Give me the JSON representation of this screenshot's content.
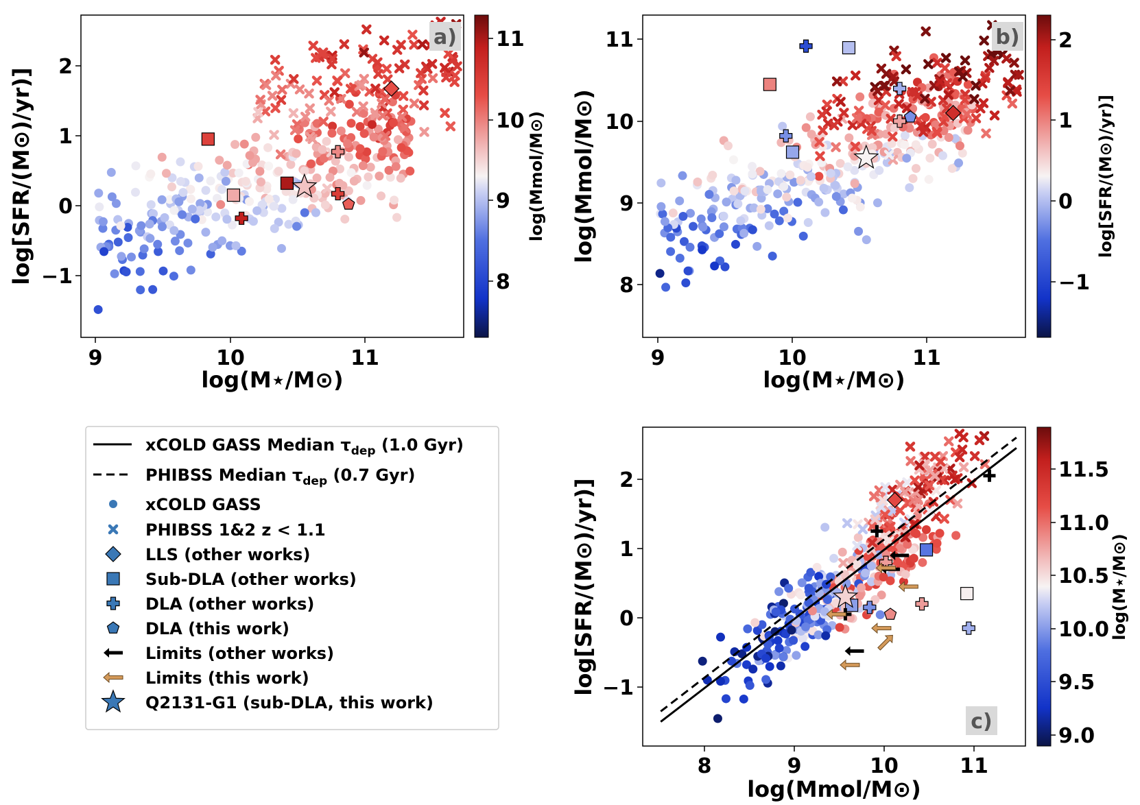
{
  "chart_data": [
    {
      "panel": "a)",
      "type": "scatter",
      "xlabel": "log(M⋆/M⊙)",
      "ylabel": "log[SFR/(M⊙)/yr)]",
      "x_ticks": [
        "9",
        "10",
        "11"
      ],
      "y_ticks": [
        "2",
        "1",
        "0",
        "−1"
      ],
      "xlim": [
        8.88,
        11.74
      ],
      "ylim": [
        -1.85,
        2.75
      ],
      "colorbar": {
        "label": "log(Mmol/M⊙)",
        "range": [
          7.3,
          11.3
        ],
        "ticks": [
          "11",
          "10",
          "9",
          "8"
        ]
      },
      "highlighted": [
        {
          "series": "LLS",
          "x": 11.2,
          "y": 1.7,
          "c": 10.3
        },
        {
          "series": "Sub-DLA",
          "x": 9.83,
          "y": 0.98,
          "c": 10.45
        },
        {
          "series": "Sub-DLA",
          "x": 10.42,
          "y": 0.35,
          "c": 11.0
        },
        {
          "series": "Sub-DLA",
          "x": 10.02,
          "y": 0.18,
          "c": 9.75
        },
        {
          "series": "DLA",
          "x": 10.8,
          "y": 0.8,
          "c": 9.95
        },
        {
          "series": "DLA",
          "x": 10.8,
          "y": 0.2,
          "c": 10.5
        },
        {
          "series": "DLA",
          "x": 10.08,
          "y": -0.15,
          "c": 10.9
        },
        {
          "series": "DLA (this work)",
          "x": 10.88,
          "y": 0.05,
          "c": 10.2
        },
        {
          "series": "Q2131-G1",
          "x": 10.55,
          "y": 0.3,
          "c": 9.6
        }
      ]
    },
    {
      "panel": "b)",
      "type": "scatter",
      "xlabel": "log(M⋆/M⊙)",
      "ylabel": "log(Mmol/M⊙)",
      "x_ticks": [
        "9",
        "10",
        "11"
      ],
      "y_ticks": [
        "11",
        "10",
        "9",
        "8"
      ],
      "xlim": [
        8.88,
        11.74
      ],
      "ylim": [
        7.35,
        11.3
      ],
      "colorbar": {
        "label": "log[SFR/(M⊙)/yr)]",
        "range": [
          -1.7,
          2.3
        ],
        "ticks": [
          "2",
          "1",
          "0",
          "−1"
        ]
      },
      "highlighted": [
        {
          "series": "LLS",
          "x": 11.2,
          "y": 10.1,
          "c": 1.7
        },
        {
          "series": "Sub-DLA",
          "x": 9.83,
          "y": 10.45,
          "c": 0.98
        },
        {
          "series": "Sub-DLA",
          "x": 10.42,
          "y": 10.9,
          "c": 0.0
        },
        {
          "series": "Sub-DLA",
          "x": 10.0,
          "y": 9.62,
          "c": -0.15
        },
        {
          "series": "DLA",
          "x": 10.1,
          "y": 10.92,
          "c": -0.9
        },
        {
          "series": "DLA",
          "x": 10.8,
          "y": 10.4,
          "c": -0.1
        },
        {
          "series": "DLA",
          "x": 9.95,
          "y": 9.82,
          "c": -0.3
        },
        {
          "series": "DLA",
          "x": 10.8,
          "y": 10.0,
          "c": 0.8
        },
        {
          "series": "DLA (this work)",
          "x": 10.88,
          "y": 10.05,
          "c": -0.3
        },
        {
          "series": "Q2131-G1",
          "x": 10.55,
          "y": 9.55,
          "c": 0.3
        }
      ]
    },
    {
      "panel": "c)",
      "type": "scatter",
      "xlabel": "log(Mmol/M⊙)",
      "ylabel": "log[SFR/(M⊙)/yr)]",
      "x_ticks": [
        "8",
        "9",
        "10",
        "11"
      ],
      "y_ticks": [
        "2",
        "1",
        "0",
        "−1"
      ],
      "xlim": [
        7.3,
        11.55
      ],
      "ylim": [
        -1.85,
        2.75
      ],
      "colorbar": {
        "label": "log(M⋆/M⊙)",
        "range": [
          8.9,
          11.9
        ],
        "ticks": [
          "11.5",
          "11.0",
          "10.5",
          "10.0",
          "9.5",
          "9.0"
        ]
      },
      "lines": [
        {
          "name": "xCOLD GASS Median τdep (1.0 Gyr)",
          "style": "solid",
          "x": [
            7.5,
            11.45
          ],
          "y": [
            -1.5,
            2.45
          ]
        },
        {
          "name": "PHIBSS Median τdep (0.7 Gyr)",
          "style": "dashed",
          "x": [
            7.5,
            11.45
          ],
          "y": [
            -1.35,
            2.6
          ]
        }
      ],
      "highlighted": [
        {
          "series": "LLS",
          "x": 10.1,
          "y": 1.7,
          "c": 11.2
        },
        {
          "series": "Sub-DLA",
          "x": 10.45,
          "y": 0.98,
          "c": 9.83
        },
        {
          "series": "Sub-DLA",
          "x": 10.9,
          "y": 0.35,
          "c": 10.42
        },
        {
          "series": "Sub-DLA",
          "x": 9.62,
          "y": 0.18,
          "c": 10.02
        },
        {
          "series": "DLA",
          "x": 10.92,
          "y": -0.15,
          "c": 10.1
        },
        {
          "series": "DLA",
          "x": 10.4,
          "y": 0.2,
          "c": 10.8
        },
        {
          "series": "DLA",
          "x": 9.82,
          "y": 0.15,
          "c": 9.95
        },
        {
          "series": "DLA",
          "x": 10.0,
          "y": 0.8,
          "c": 10.8
        },
        {
          "series": "DLA (this work)",
          "x": 10.05,
          "y": 0.05,
          "c": 10.88
        },
        {
          "series": "Q2131-G1",
          "x": 9.55,
          "y": 0.3,
          "c": 10.55
        }
      ],
      "limits_other_works": [
        {
          "x": 9.9,
          "y": 1.25,
          "dir": "plus"
        },
        {
          "x": 11.15,
          "y": 2.05,
          "dir": "plus"
        },
        {
          "x": 10.15,
          "y": 0.9,
          "dir": "left"
        },
        {
          "x": 10.05,
          "y": 0.7,
          "dir": "left"
        },
        {
          "x": 9.65,
          "y": -0.48,
          "dir": "left"
        },
        {
          "x": 9.55,
          "y": 0.05,
          "dir": "plus"
        }
      ],
      "limits_this_work": [
        {
          "x": 10.0,
          "y": 0.72,
          "dir": "left"
        },
        {
          "x": 10.25,
          "y": 0.45,
          "dir": "left"
        },
        {
          "x": 9.95,
          "y": -0.15,
          "dir": "left"
        },
        {
          "x": 10.0,
          "y": -0.35,
          "dir": "upright"
        },
        {
          "x": 9.6,
          "y": -0.68,
          "dir": "left"
        },
        {
          "x": 9.45,
          "y": 0.05,
          "dir": "left"
        }
      ]
    }
  ],
  "legend": {
    "items": [
      {
        "label": "xCOLD GASS Median τdep (1.0 Gyr)",
        "marker": "solid-line"
      },
      {
        "label": "PHIBSS Median τdep (0.7 Gyr)",
        "marker": "dashed-line"
      },
      {
        "label": "xCOLD GASS",
        "marker": "circle"
      },
      {
        "label": "PHIBSS 1&2 z < 1.1",
        "marker": "x"
      },
      {
        "label": "LLS (other works)",
        "marker": "diamond"
      },
      {
        "label": "Sub-DLA (other works)",
        "marker": "square"
      },
      {
        "label": "DLA (other works)",
        "marker": "plus"
      },
      {
        "label": "DLA (this work)",
        "marker": "pentagon"
      },
      {
        "label": "Limits (other works)",
        "marker": "black-arrow"
      },
      {
        "label": "Limits (this work)",
        "marker": "brown-arrow"
      },
      {
        "label": "Q2131-G1 (sub-DLA, this work)",
        "marker": "star"
      }
    ]
  },
  "colors": {
    "marker_blue": "#3a78b6",
    "limit_brown": "#d49a5a",
    "panel_label_bg": "#d9d9d9"
  }
}
